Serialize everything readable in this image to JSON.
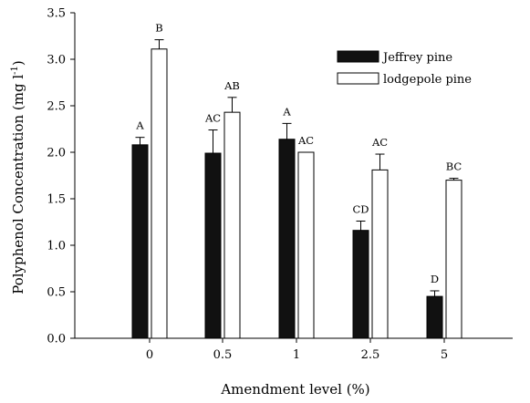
{
  "chart_data": {
    "type": "bar",
    "xlabel": "Amendment level (%)",
    "ylabel": "Polyphenol Concentration (mg l",
    "ylabel_sup": "-1",
    "ylabel_close": ")",
    "ylim": [
      0.0,
      3.5
    ],
    "yticks": [
      "0.0",
      "0.5",
      "1.0",
      "1.5",
      "2.0",
      "2.5",
      "3.0",
      "3.5"
    ],
    "categories": [
      "0",
      "0.5",
      "1",
      "2.5",
      "5"
    ],
    "grid": false,
    "legend_position": "top-right",
    "series": [
      {
        "name": "Jeffrey pine",
        "fill": "#111111",
        "values": [
          2.08,
          1.99,
          2.14,
          1.16,
          0.45
        ],
        "errors": [
          0.08,
          0.25,
          0.17,
          0.1,
          0.06
        ],
        "labels": [
          "A",
          "AC",
          "A",
          "CD",
          "D"
        ]
      },
      {
        "name": "lodgepole pine",
        "fill": "#ffffff",
        "values": [
          3.11,
          2.43,
          2.0,
          1.81,
          1.7
        ],
        "errors": [
          0.1,
          0.16,
          0.0,
          0.17,
          0.02
        ],
        "labels": [
          "B",
          "AB",
          "AC",
          "AC",
          "BC"
        ]
      }
    ]
  }
}
